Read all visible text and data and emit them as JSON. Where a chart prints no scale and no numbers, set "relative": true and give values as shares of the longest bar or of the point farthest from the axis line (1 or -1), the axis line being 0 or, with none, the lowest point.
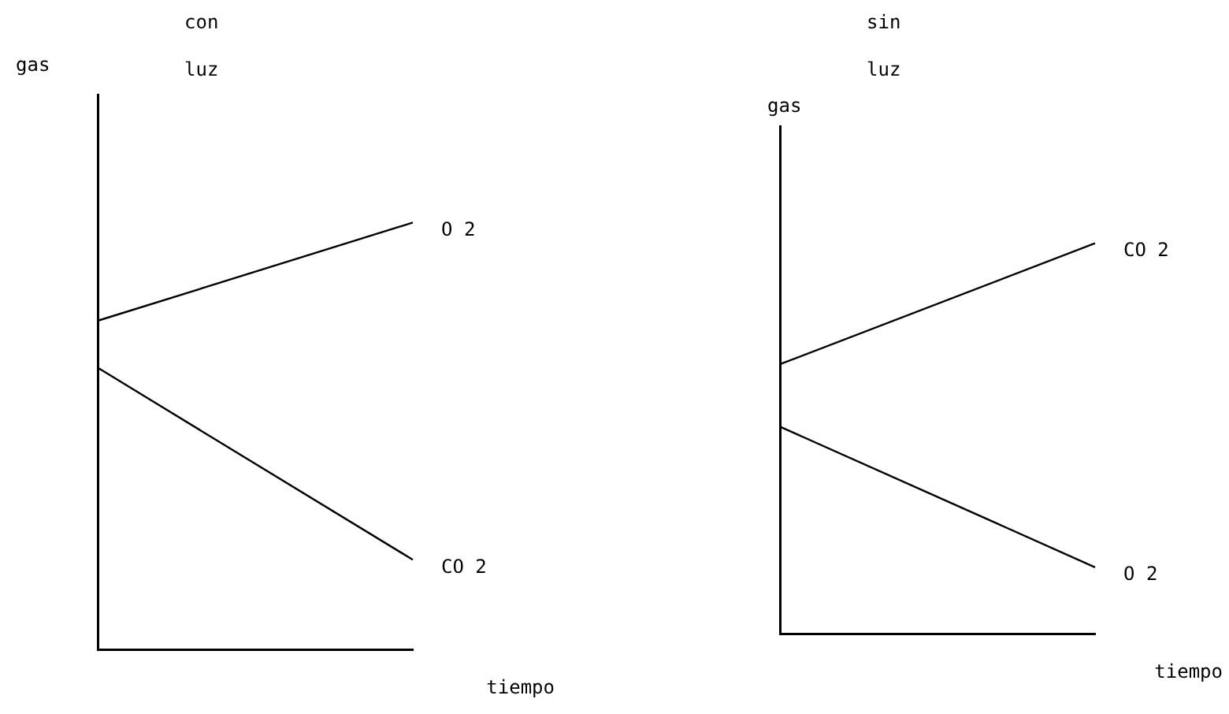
{
  "chart_data": [
    {
      "type": "line",
      "title": "con luz",
      "xlabel": "tiempo",
      "ylabel": "gas",
      "relative": true,
      "categories": [
        null,
        null
      ],
      "legend": false,
      "grid": false,
      "marker": "none",
      "series": [
        {
          "name": "O 2",
          "color": "#000000",
          "values": [
            0.77,
            1.0
          ]
        },
        {
          "name": "CO 2",
          "color": "#000000",
          "values": [
            0.66,
            0.21
          ]
        }
      ]
    },
    {
      "type": "line",
      "title": "sin luz",
      "xlabel": "tiempo",
      "ylabel": "gas",
      "relative": true,
      "categories": [
        null,
        null
      ],
      "legend": false,
      "grid": false,
      "marker": "none",
      "series": [
        {
          "name": "CO 2",
          "color": "#000000",
          "values": [
            0.69,
            1.0
          ]
        },
        {
          "name": "O 2",
          "color": "#000000",
          "values": [
            0.53,
            0.17
          ]
        }
      ]
    }
  ]
}
